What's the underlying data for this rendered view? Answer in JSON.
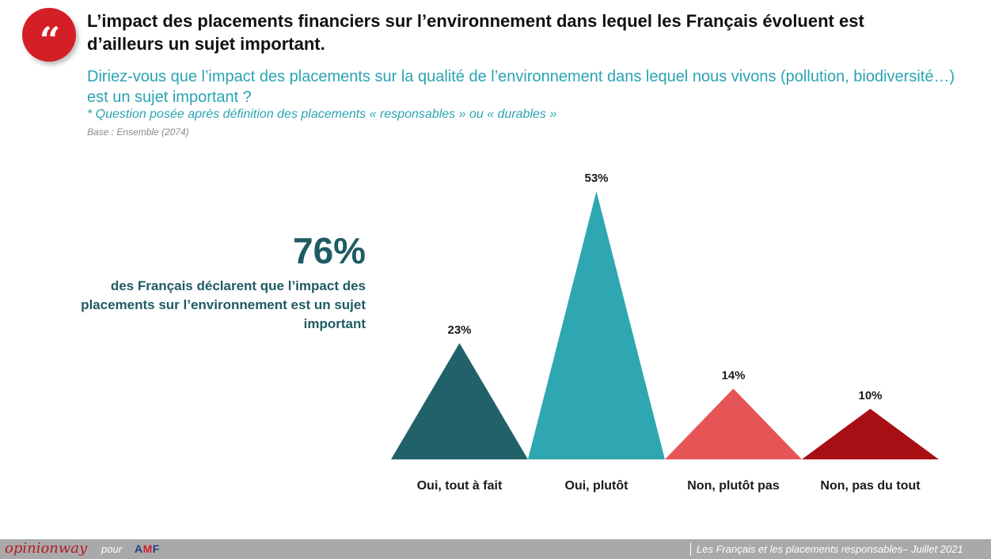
{
  "header": {
    "title": "L’impact des placements financiers sur l’environnement dans lequel les Français évoluent est d’ailleurs un sujet important.",
    "question": "Diriez-vous que l’impact des placements sur la qualité de l’environnement dans lequel nous vivons (pollution, biodiversité…) est un sujet important ?",
    "footnote": "* Question posée après définition des placements « responsables » ou « durables »",
    "base": "Base : Ensemble (2074)"
  },
  "highlight": {
    "value": "76%",
    "text": "des Français déclarent que l’impact des placements sur l’environnement est un sujet important"
  },
  "chart_data": {
    "type": "bar",
    "categories": [
      "Oui, tout à fait",
      "Oui, plutôt",
      "Non, plutôt pas",
      "Non, pas du tout"
    ],
    "values": [
      23,
      53,
      14,
      10
    ],
    "data_labels": [
      "23%",
      "53%",
      "14%",
      "10%"
    ],
    "colors": [
      "#21626a",
      "#2fa7b2",
      "#e65555",
      "#a80f14"
    ],
    "ylim": [
      0,
      53
    ],
    "grid": false
  },
  "footer": {
    "brand": "opinionway",
    "pour": "pour",
    "partner_a": "A",
    "partner_m": "M",
    "partner_f": "F",
    "source": "Les Français et les placements responsables– Juillet 2021"
  },
  "icons": {
    "quote": "quote-mark-icon",
    "quote_glyph": "“"
  },
  "colors": {
    "accent_red": "#d51f26",
    "teal_text": "#2aa4b3",
    "dark_teal": "#1f5b62"
  }
}
